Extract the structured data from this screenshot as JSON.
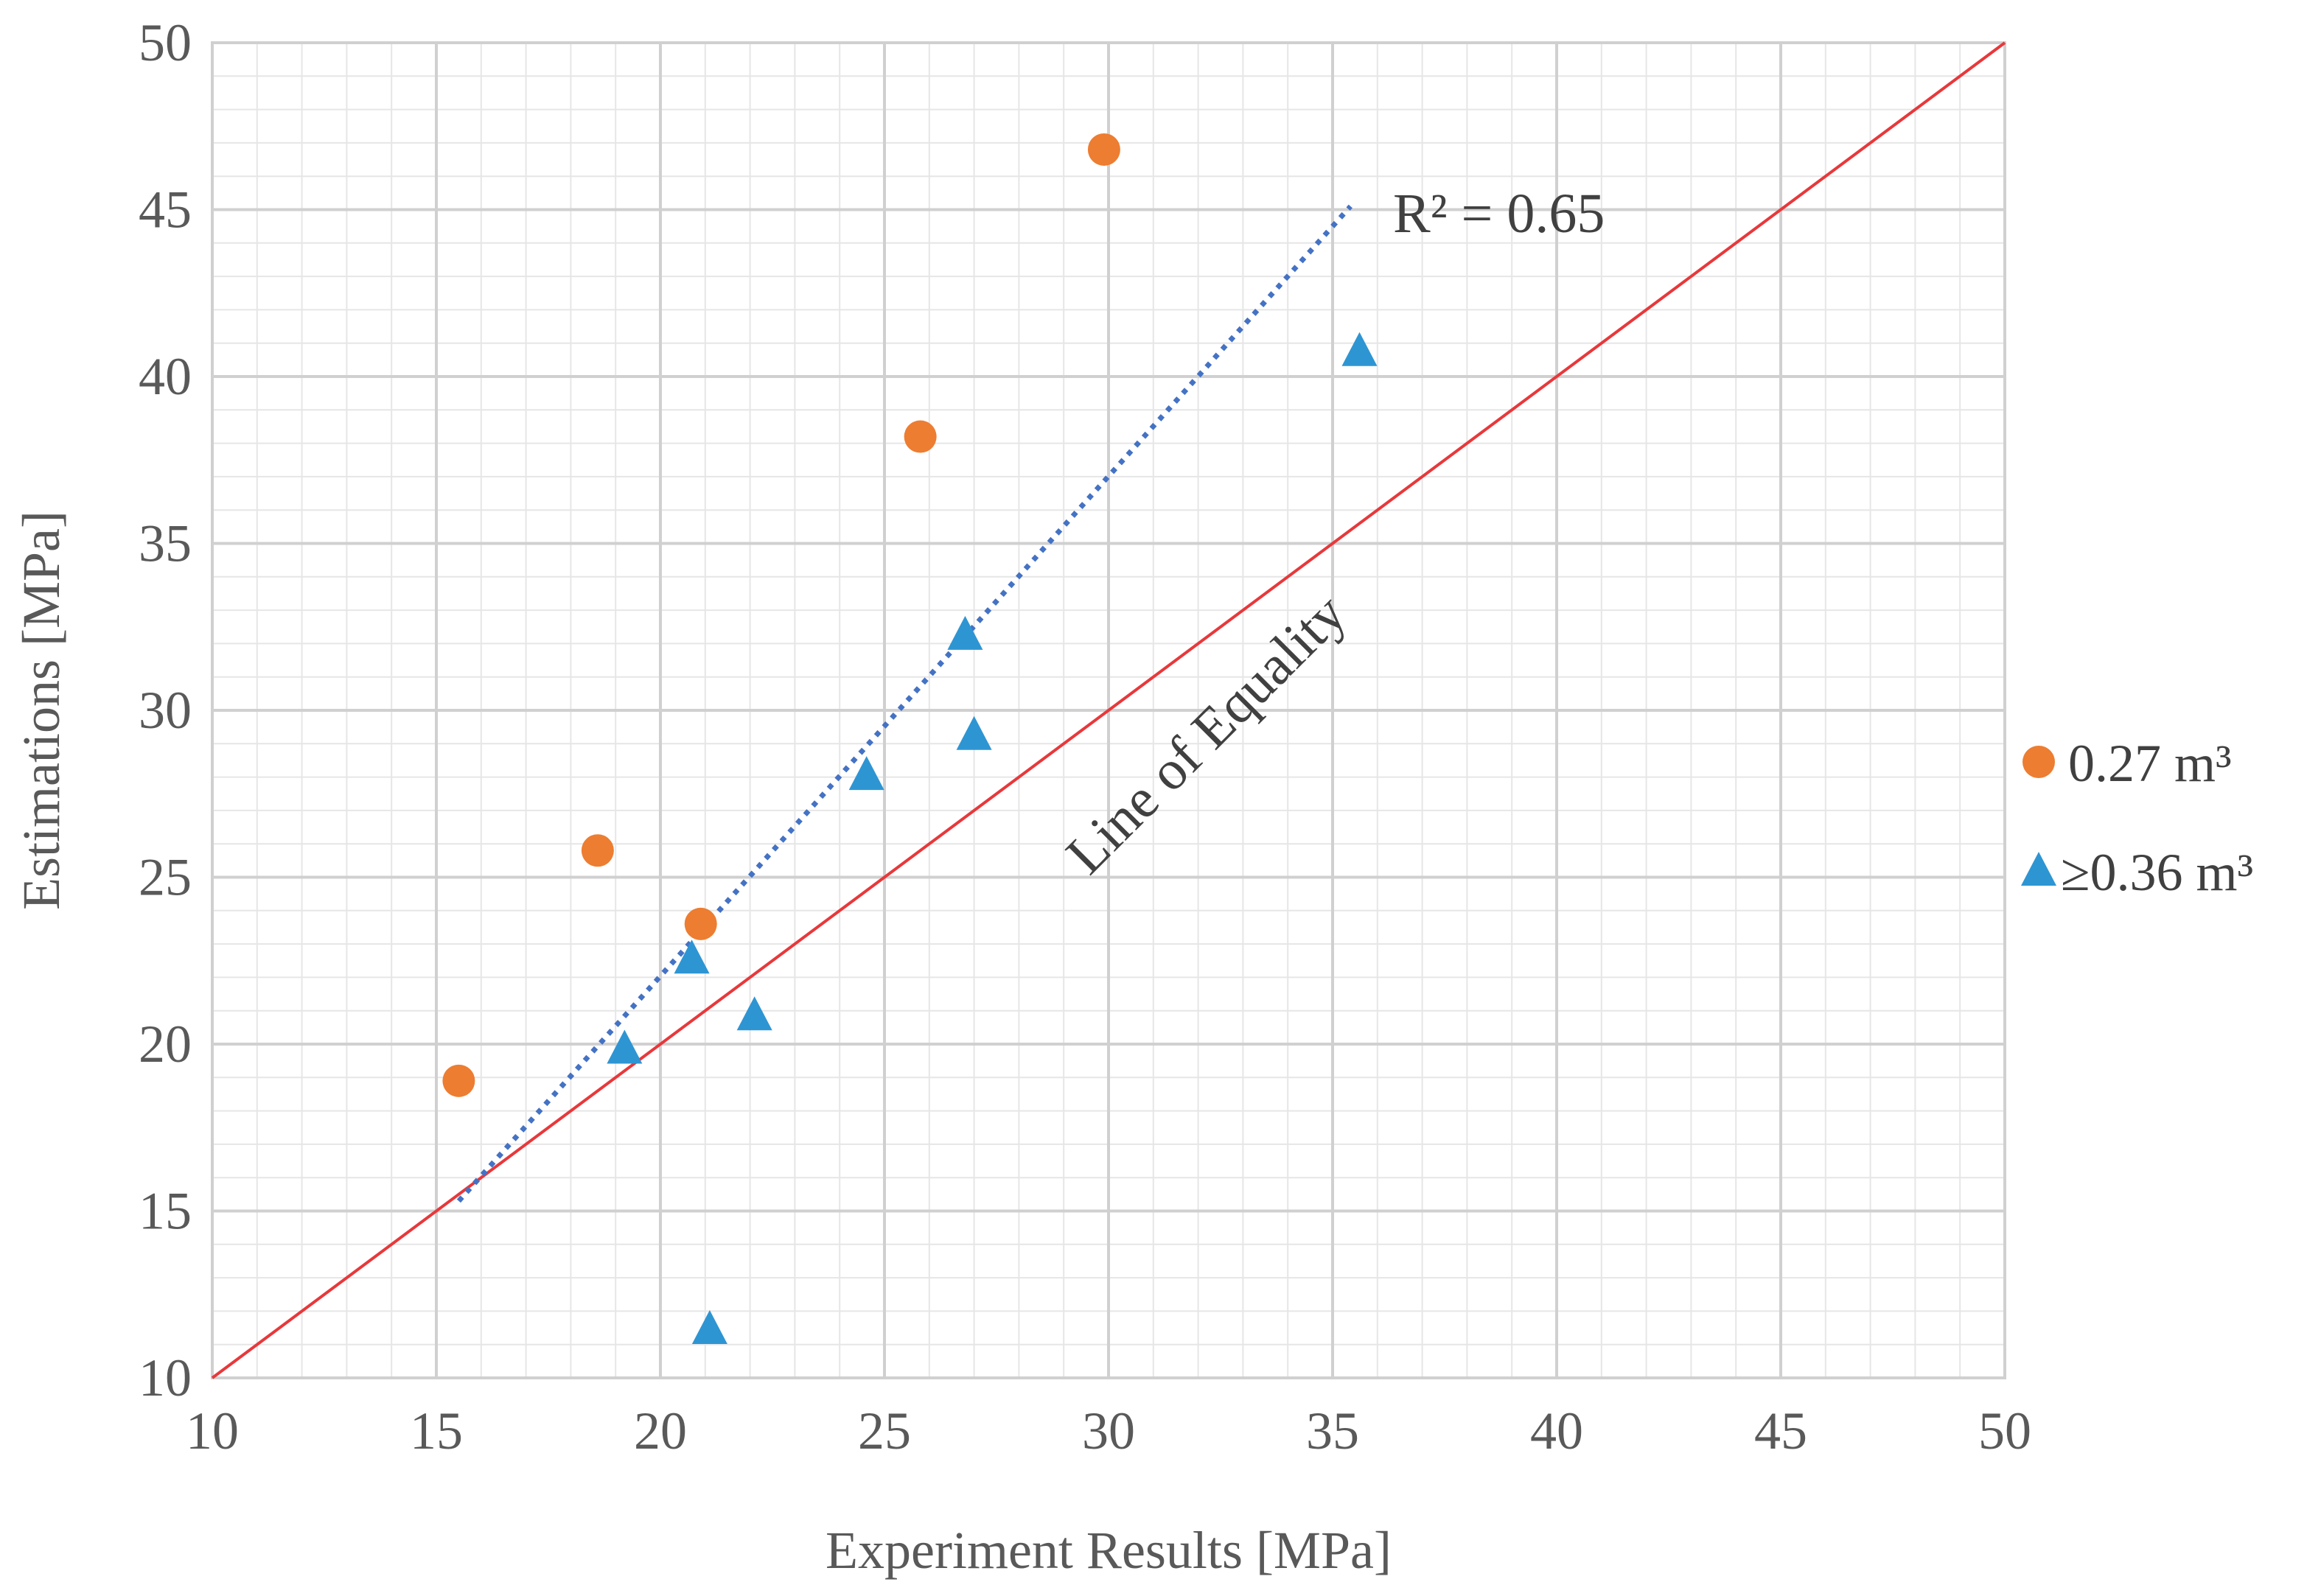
{
  "chart_data": {
    "type": "scatter",
    "title": "",
    "xlabel": "Experiment Results [MPa]",
    "ylabel": "Estimations [MPa]",
    "xlim": [
      10,
      50
    ],
    "ylim": [
      10,
      50
    ],
    "xticks": [
      10,
      15,
      20,
      25,
      30,
      35,
      40,
      45,
      50
    ],
    "yticks": [
      10,
      15,
      20,
      25,
      30,
      35,
      40,
      45,
      50
    ],
    "minor_grid_step": 1,
    "grid": true,
    "legend_position": "right",
    "series": [
      {
        "name": "0.27 m³",
        "marker": "circle",
        "color": "#ED7D31",
        "points": [
          [
            15.5,
            18.9
          ],
          [
            18.6,
            25.8
          ],
          [
            20.9,
            23.6
          ],
          [
            25.8,
            38.2
          ],
          [
            29.9,
            46.8
          ]
        ]
      },
      {
        "name": "≥0.36 m³",
        "marker": "triangle",
        "color": "#2E95D3",
        "points": [
          [
            19.2,
            19.8
          ],
          [
            20.7,
            22.5
          ],
          [
            21.1,
            11.4
          ],
          [
            22.1,
            20.8
          ],
          [
            24.6,
            28.0
          ],
          [
            26.8,
            32.2
          ],
          [
            27.0,
            29.2
          ],
          [
            35.6,
            40.7
          ]
        ]
      }
    ],
    "trendline": {
      "style": "dotted",
      "color": "#4472C4",
      "start": [
        15.5,
        15.3
      ],
      "end": [
        35.4,
        45.1
      ],
      "label": "R² = 0.65"
    },
    "equality_line": {
      "color": "#E8383B",
      "start": [
        10,
        10
      ],
      "end": [
        50,
        50
      ],
      "label": "Line of Equality"
    }
  }
}
